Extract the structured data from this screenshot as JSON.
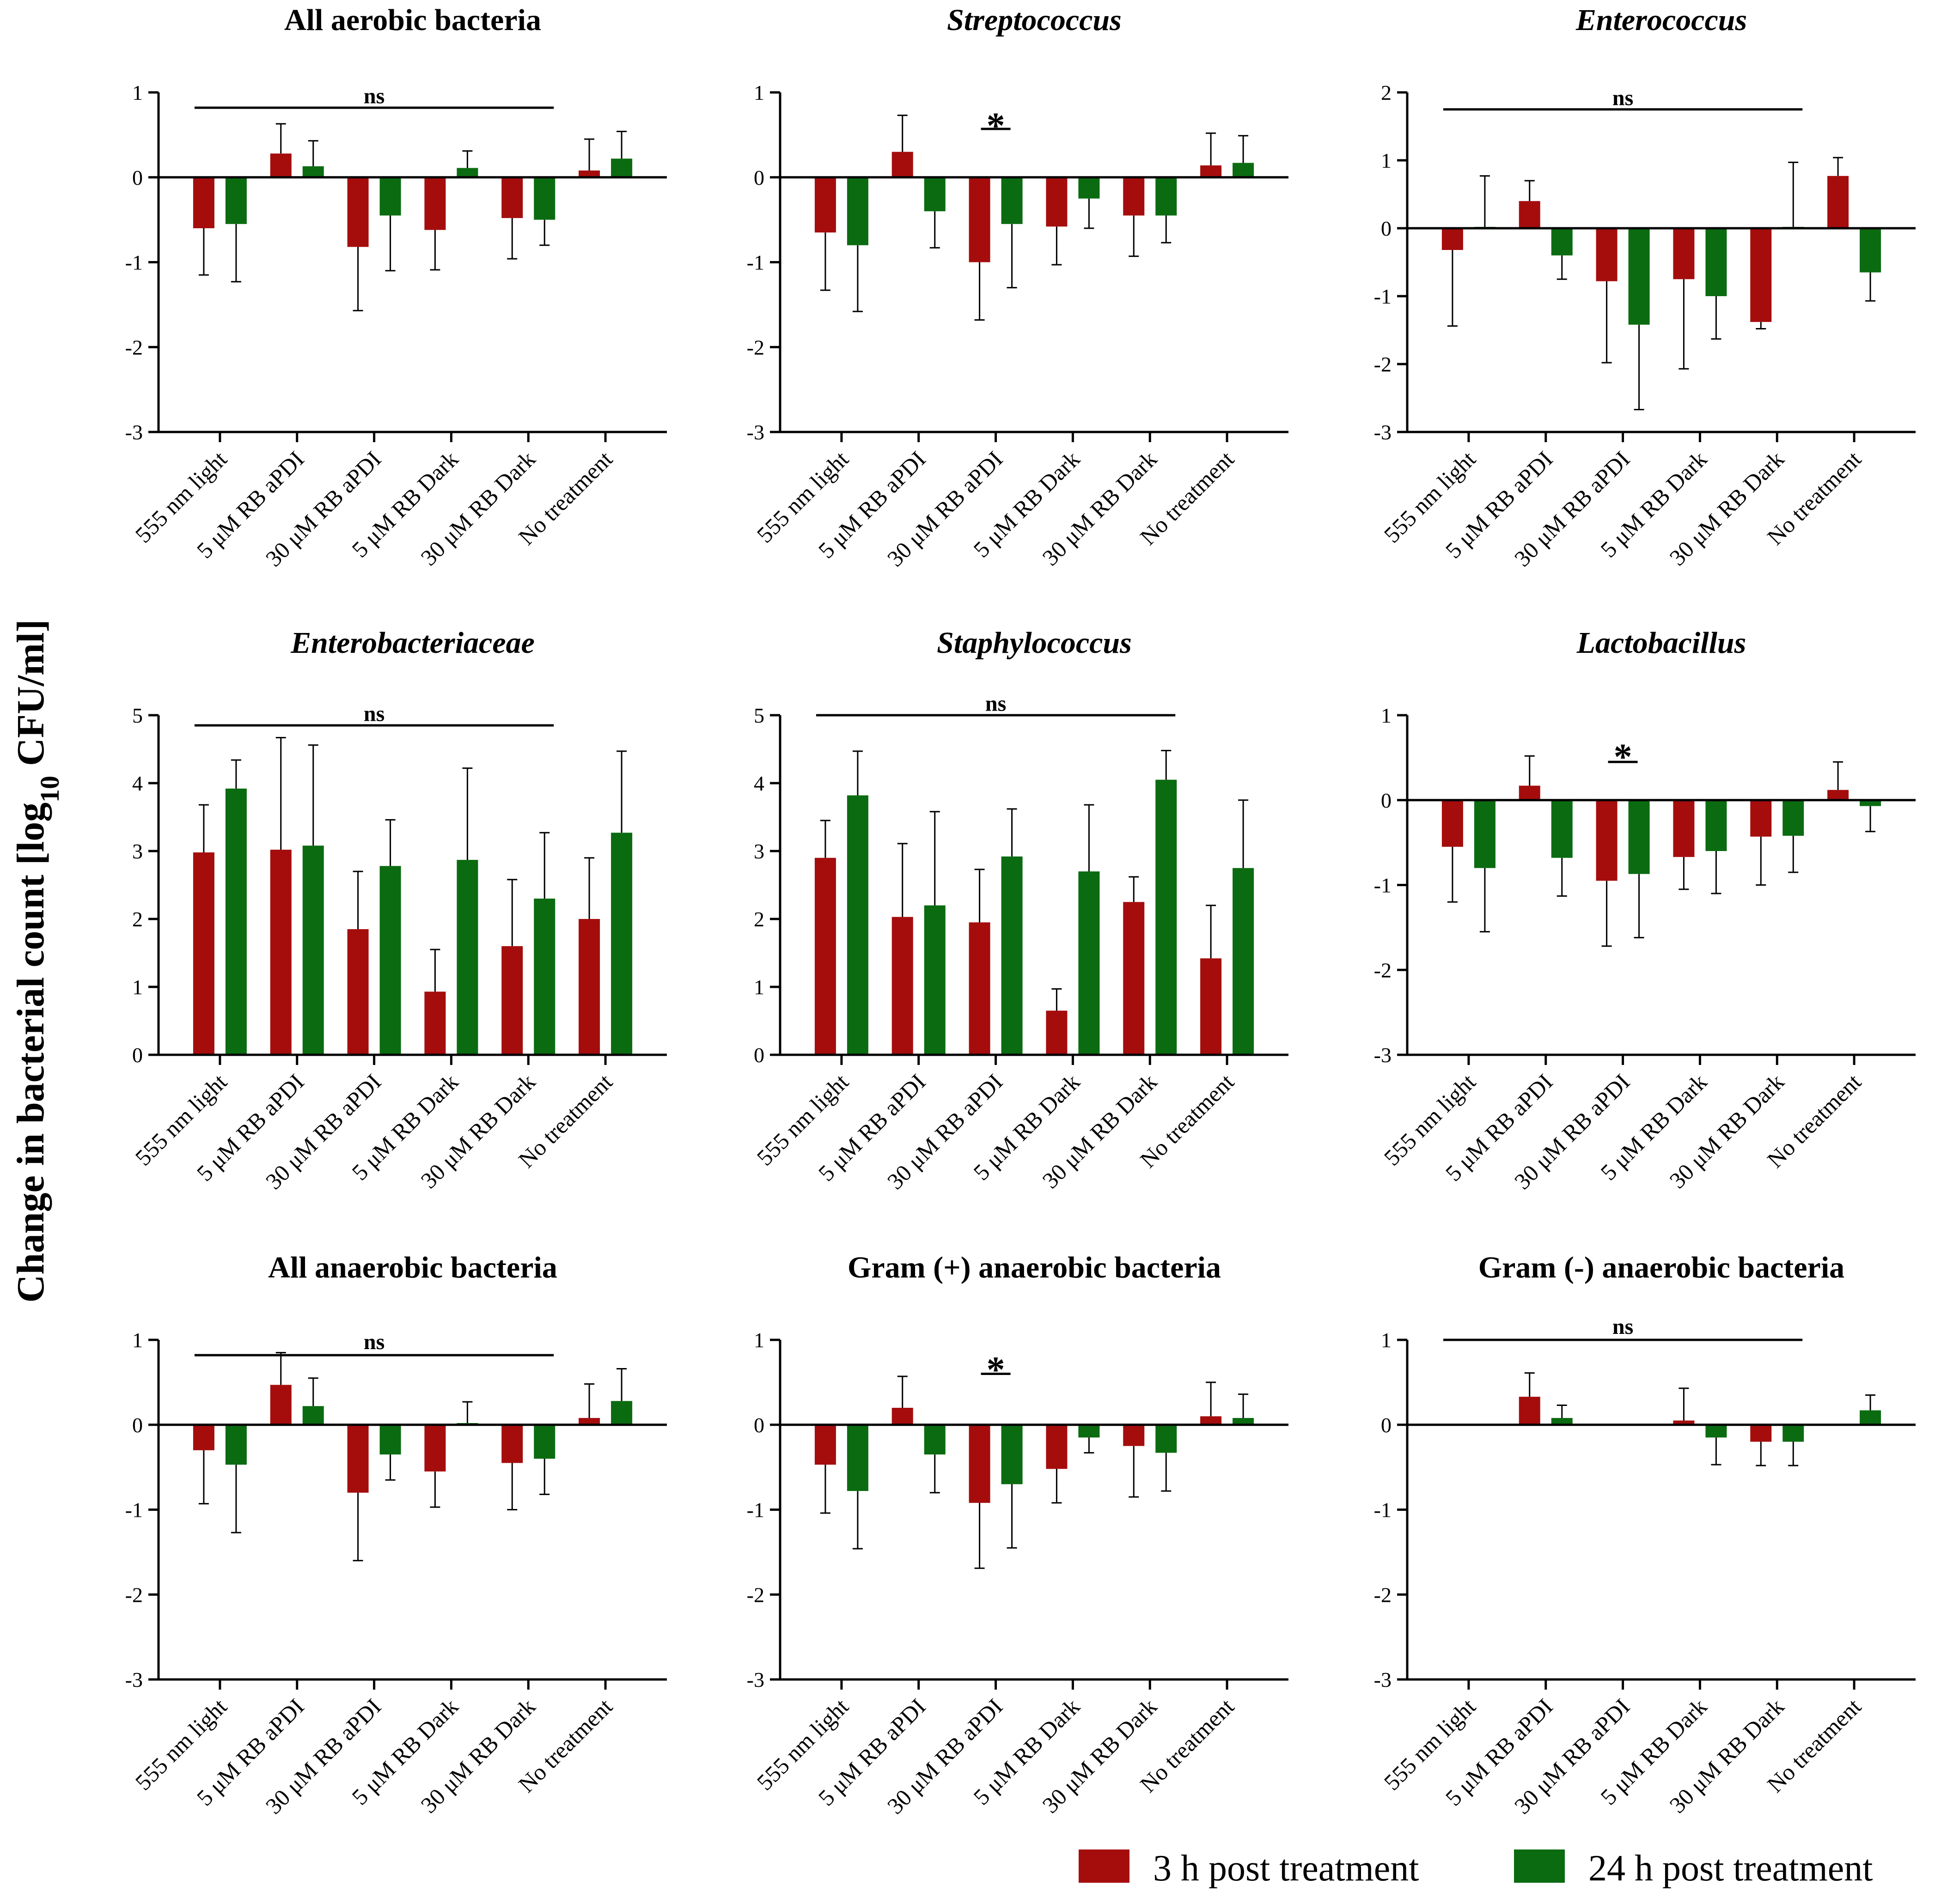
{
  "figure": {
    "ylabel": {
      "prefix": "Change in bacterial count [log",
      "sub": "10",
      "suffix": " CFU/ml]"
    }
  },
  "legend": [
    {
      "label": "3 h post treatment",
      "color": "#a50d0d"
    },
    {
      "label": "24 h post treatment",
      "color": "#0b6b11"
    }
  ],
  "colors": {
    "series_3h": "#a50d0d",
    "series_24h": "#0b6b11",
    "axis": "#000000"
  },
  "chart_data": [
    {
      "type": "bar",
      "title": "All aerobic bacteria",
      "italic": false,
      "categories": [
        "555 nm light",
        "5 μM RB aPDI",
        "30 μM RB aPDI",
        "5 μM RB Dark",
        "30 μM RB Dark",
        "No treatment"
      ],
      "ylim": [
        -3,
        1
      ],
      "yticks": [
        1,
        0,
        -1,
        -2,
        -3
      ],
      "series": [
        {
          "name": "3 h post treatment",
          "values": [
            -0.6,
            0.28,
            -0.82,
            -0.62,
            -0.48,
            0.08
          ],
          "errors": [
            0.55,
            0.35,
            0.75,
            0.47,
            0.48,
            0.37
          ]
        },
        {
          "name": "24 h post treatment",
          "values": [
            -0.55,
            0.13,
            -0.45,
            0.11,
            -0.5,
            0.22
          ],
          "errors": [
            0.68,
            0.3,
            0.65,
            0.2,
            0.3,
            0.32
          ]
        }
      ],
      "annotation": {
        "type": "bar",
        "text": "ns",
        "from_category": 0,
        "to_category": 4,
        "y": 0.82,
        "text_y": 0.98
      }
    },
    {
      "type": "bar",
      "title": "Streptococcus",
      "italic": true,
      "categories": [
        "555 nm light",
        "5 μM RB aPDI",
        "30 μM RB aPDI",
        "5 μM RB Dark",
        "30 μM RB Dark",
        "No treatment"
      ],
      "ylim": [
        -3,
        1
      ],
      "yticks": [
        1,
        0,
        -1,
        -2,
        -3
      ],
      "series": [
        {
          "name": "3 h post treatment",
          "values": [
            -0.65,
            0.3,
            -1.0,
            -0.58,
            -0.45,
            0.14
          ],
          "errors": [
            0.68,
            0.43,
            0.68,
            0.45,
            0.48,
            0.38
          ]
        },
        {
          "name": "24 h post treatment",
          "values": [
            -0.8,
            -0.4,
            -0.55,
            -0.25,
            -0.45,
            0.17
          ],
          "errors": [
            0.78,
            0.43,
            0.75,
            0.35,
            0.32,
            0.32
          ]
        }
      ],
      "annotation": {
        "type": "short",
        "text": "*",
        "category": 2,
        "y": 0.57,
        "text_y": 0.68
      }
    },
    {
      "type": "bar",
      "title": "Enterococcus",
      "italic": true,
      "categories": [
        "555 nm light",
        "5 μM RB aPDI",
        "30 μM RB aPDI",
        "5 μM RB Dark",
        "30 μM RB Dark",
        "No treatment"
      ],
      "ylim": [
        -3,
        2
      ],
      "yticks": [
        2,
        1,
        0,
        -1,
        -2,
        -3
      ],
      "series": [
        {
          "name": "3 h post treatment",
          "values": [
            -0.32,
            0.4,
            -0.78,
            -0.75,
            -1.38,
            0.77
          ],
          "errors": [
            1.12,
            0.3,
            1.2,
            1.32,
            0.1,
            0.27
          ]
        },
        {
          "name": "24 h post treatment",
          "values": [
            0.02,
            -0.4,
            -1.42,
            -1.0,
            0.02,
            -0.65
          ],
          "errors": [
            0.75,
            0.35,
            1.25,
            0.63,
            0.95,
            0.42
          ]
        }
      ],
      "annotation": {
        "type": "bar",
        "text": "ns",
        "from_category": 0,
        "to_category": 4,
        "y": 1.75,
        "text_y": 1.95
      }
    },
    {
      "type": "bar",
      "title": "Enterobacteriaceae",
      "italic": true,
      "categories": [
        "555 nm light",
        "5 μM RB aPDI",
        "30 μM RB aPDI",
        "5 μM RB Dark",
        "30 μM RB Dark",
        "No treatment"
      ],
      "ylim": [
        0,
        5
      ],
      "yticks": [
        5,
        4,
        3,
        2,
        1,
        0
      ],
      "series": [
        {
          "name": "3 h post treatment",
          "values": [
            2.98,
            3.02,
            1.85,
            0.93,
            1.6,
            2.0
          ],
          "errors": [
            0.7,
            1.65,
            0.85,
            0.62,
            0.98,
            0.9
          ]
        },
        {
          "name": "24 h post treatment",
          "values": [
            3.92,
            3.08,
            2.78,
            2.87,
            2.3,
            3.27
          ],
          "errors": [
            0.42,
            1.48,
            0.68,
            1.35,
            0.97,
            1.2
          ]
        }
      ],
      "annotation": {
        "type": "bar",
        "text": "ns",
        "from_category": 0,
        "to_category": 4,
        "y": 4.85,
        "text_y": 5.05
      }
    },
    {
      "type": "bar",
      "title": "Staphylococcus",
      "italic": true,
      "categories": [
        "555 nm light",
        "5 μM RB aPDI",
        "30 μM RB aPDI",
        "5 μM RB Dark",
        "30 μM RB Dark",
        "No treatment"
      ],
      "ylim": [
        0,
        5
      ],
      "yticks": [
        5,
        4,
        3,
        2,
        1,
        0
      ],
      "series": [
        {
          "name": "3 h post treatment",
          "values": [
            2.9,
            2.03,
            1.95,
            0.65,
            2.25,
            1.42
          ],
          "errors": [
            0.55,
            1.08,
            0.78,
            0.32,
            0.37,
            0.78
          ]
        },
        {
          "name": "24 h post treatment",
          "values": [
            3.82,
            2.2,
            2.92,
            2.7,
            4.05,
            2.75
          ],
          "errors": [
            0.65,
            1.38,
            0.7,
            0.98,
            0.43,
            1.0
          ]
        }
      ],
      "annotation": {
        "type": "bar",
        "text": "ns",
        "from_category": 0,
        "to_category": 4,
        "y": 5.0,
        "text_y": 5.2
      }
    },
    {
      "type": "bar",
      "title": "Lactobacillus",
      "italic": true,
      "categories": [
        "555 nm light",
        "5 μM RB aPDI",
        "30 μM RB aPDI",
        "5 μM RB Dark",
        "30 μM RB Dark",
        "No treatment"
      ],
      "ylim": [
        -3,
        1
      ],
      "yticks": [
        1,
        0,
        -1,
        -2,
        -3
      ],
      "series": [
        {
          "name": "3 h post treatment",
          "values": [
            -0.55,
            0.17,
            -0.95,
            -0.67,
            -0.43,
            0.12
          ],
          "errors": [
            0.65,
            0.35,
            0.77,
            0.38,
            0.57,
            0.33
          ]
        },
        {
          "name": "24 h post treatment",
          "values": [
            -0.8,
            -0.68,
            -0.87,
            -0.6,
            -0.42,
            -0.07
          ],
          "errors": [
            0.75,
            0.45,
            0.75,
            0.5,
            0.43,
            0.3
          ]
        }
      ],
      "annotation": {
        "type": "short",
        "text": "*",
        "category": 2,
        "y": 0.45,
        "text_y": 0.58
      }
    },
    {
      "type": "bar",
      "title": "All anaerobic bacteria",
      "italic": false,
      "categories": [
        "555 nm light",
        "5 μM RB aPDI",
        "30 μM RB aPDI",
        "5 μM RB Dark",
        "30 μM RB Dark",
        "No treatment"
      ],
      "ylim": [
        -3,
        1
      ],
      "yticks": [
        1,
        0,
        -1,
        -2,
        -3
      ],
      "series": [
        {
          "name": "3 h post treatment",
          "values": [
            -0.3,
            0.47,
            -0.8,
            -0.55,
            -0.45,
            0.08
          ],
          "errors": [
            0.63,
            0.38,
            0.8,
            0.42,
            0.55,
            0.4
          ]
        },
        {
          "name": "24 h post treatment",
          "values": [
            -0.47,
            0.22,
            -0.35,
            0.02,
            -0.4,
            0.28
          ],
          "errors": [
            0.8,
            0.33,
            0.3,
            0.25,
            0.42,
            0.38
          ]
        }
      ],
      "annotation": {
        "type": "bar",
        "text": "ns",
        "from_category": 0,
        "to_category": 4,
        "y": 0.82,
        "text_y": 1.0
      }
    },
    {
      "type": "bar",
      "title": "Gram (+) anaerobic bacteria",
      "italic": false,
      "categories": [
        "555 nm light",
        "5 μM RB aPDI",
        "30 μM RB aPDI",
        "5 μM RB Dark",
        "30 μM RB Dark",
        "No treatment"
      ],
      "ylim": [
        -3,
        1
      ],
      "yticks": [
        1,
        0,
        -1,
        -2,
        -3
      ],
      "series": [
        {
          "name": "3 h post treatment",
          "values": [
            -0.47,
            0.2,
            -0.92,
            -0.52,
            -0.25,
            0.1
          ],
          "errors": [
            0.57,
            0.37,
            0.77,
            0.4,
            0.6,
            0.4
          ]
        },
        {
          "name": "24 h post treatment",
          "values": [
            -0.78,
            -0.35,
            -0.7,
            -0.15,
            -0.33,
            0.08
          ],
          "errors": [
            0.68,
            0.45,
            0.75,
            0.18,
            0.45,
            0.28
          ]
        }
      ],
      "annotation": {
        "type": "short",
        "text": "*",
        "category": 2,
        "y": 0.6,
        "text_y": 0.72
      }
    },
    {
      "type": "bar",
      "title": "Gram (-) anaerobic bacteria",
      "italic": false,
      "categories": [
        "555 nm light",
        "5 μM RB aPDI",
        "30 μM RB aPDI",
        "5 μM RB Dark",
        "30 μM RB Dark",
        "No treatment"
      ],
      "ylim": [
        -3,
        1
      ],
      "yticks": [
        1,
        0,
        -1,
        -2,
        -3
      ],
      "series": [
        {
          "name": "3 h post treatment",
          "values": [
            0,
            0.33,
            0,
            0.05,
            -0.2,
            0
          ],
          "errors": [
            0,
            0.28,
            0,
            0.38,
            0.28,
            0
          ]
        },
        {
          "name": "24 h post treatment",
          "values": [
            0,
            0.08,
            0,
            -0.15,
            -0.2,
            0.17
          ],
          "errors": [
            0,
            0.15,
            0,
            0.32,
            0.28,
            0.18
          ]
        }
      ],
      "annotation": {
        "type": "bar",
        "text": "ns",
        "from_category": 0,
        "to_category": 4,
        "y": 1.0,
        "text_y": 1.18
      }
    }
  ]
}
